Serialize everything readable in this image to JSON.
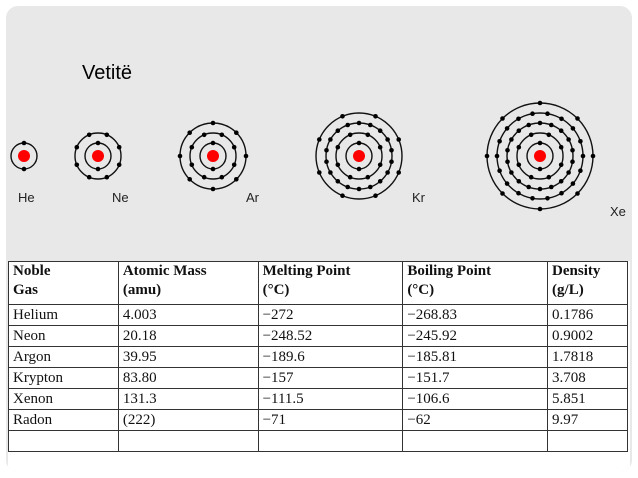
{
  "slide": {
    "title": "Vetitë"
  },
  "atoms": [
    {
      "symbol": "He",
      "shells": [
        2
      ]
    },
    {
      "symbol": "Ne",
      "shells": [
        2,
        8
      ]
    },
    {
      "symbol": "Ar",
      "shells": [
        2,
        8,
        8
      ]
    },
    {
      "symbol": "Kr",
      "shells": [
        2,
        8,
        18,
        8
      ]
    },
    {
      "symbol": "Xe",
      "shells": [
        2,
        8,
        18,
        18,
        8
      ]
    }
  ],
  "colors": {
    "nucleus": "#ff0000",
    "electron": "#000000",
    "slide_bg": "#e8e8e8"
  },
  "table": {
    "headers": [
      [
        "Noble",
        "Gas"
      ],
      [
        "Atomic Mass",
        "(amu)"
      ],
      [
        "Melting Point",
        "(°C)"
      ],
      [
        "Boiling Point",
        "(°C)"
      ],
      [
        "Density",
        "(g/L)"
      ]
    ],
    "rows": [
      [
        "Helium",
        "4.003",
        "−272",
        "−268.83",
        "0.1786"
      ],
      [
        "Neon",
        "20.18",
        "−248.52",
        "−245.92",
        "0.9002"
      ],
      [
        "Argon",
        "39.95",
        "−189.6",
        "−185.81",
        "1.7818"
      ],
      [
        "Krypton",
        "83.80",
        "−157",
        "−151.7",
        "3.708"
      ],
      [
        "Xenon",
        "131.3",
        "−111.5",
        "−106.6",
        "5.851"
      ],
      [
        "Radon",
        "(222)",
        "−71",
        "−62",
        "9.97"
      ],
      [
        "",
        "",
        "",
        "",
        ""
      ]
    ]
  }
}
